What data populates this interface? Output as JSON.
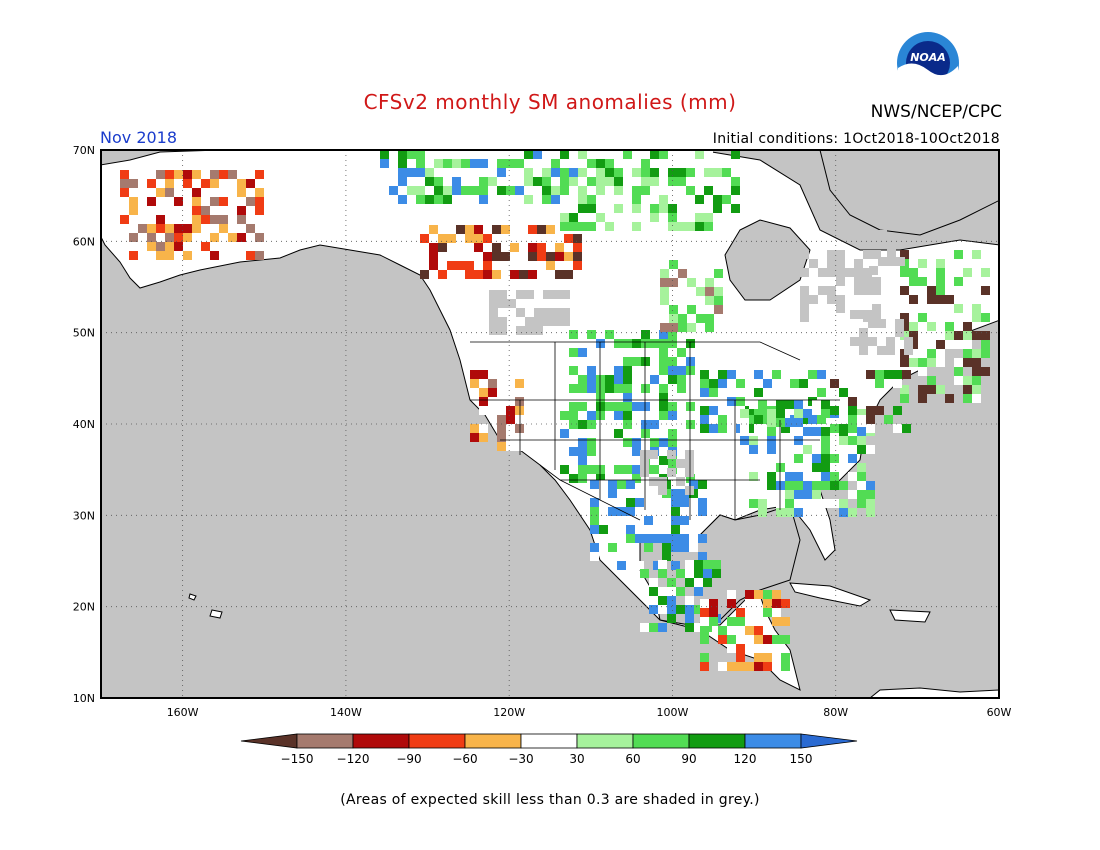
{
  "title": "CFSv2 monthly SM anomalies (mm)",
  "organization": "NWS/NCEP/CPC",
  "logo_text": "NOAA",
  "valid_month": "Nov 2018",
  "initial_conditions": "Initial conditions: 1Oct2018-10Oct2018",
  "footnote": "(Areas of expected skill less than 0.3 are shaded in grey.)",
  "map": {
    "lon_range": [
      -170,
      -60
    ],
    "lat_range": [
      10,
      70
    ],
    "lat_labels": [
      "70N",
      "60N",
      "50N",
      "40N",
      "30N",
      "20N",
      "10N"
    ],
    "lon_labels": [
      "160W",
      "140W",
      "120W",
      "100W",
      "80W",
      "60W"
    ],
    "gridlines": "dotted",
    "colors": {
      "ocean_low_skill": "#c4c4c4",
      "land": "#ffffff"
    }
  },
  "colorbar": {
    "tick_labels": [
      "-150",
      "-120",
      "-90",
      "-60",
      "-30",
      "30",
      "60",
      "90",
      "120",
      "150"
    ],
    "colors": [
      "#5a3228",
      "#a57a6e",
      "#b00a0a",
      "#f03c14",
      "#f8b44a",
      "#ffffff",
      "#a6f29c",
      "#52dc54",
      "#129c12",
      "#3c8ce6",
      "#2a6ad2"
    ]
  }
}
